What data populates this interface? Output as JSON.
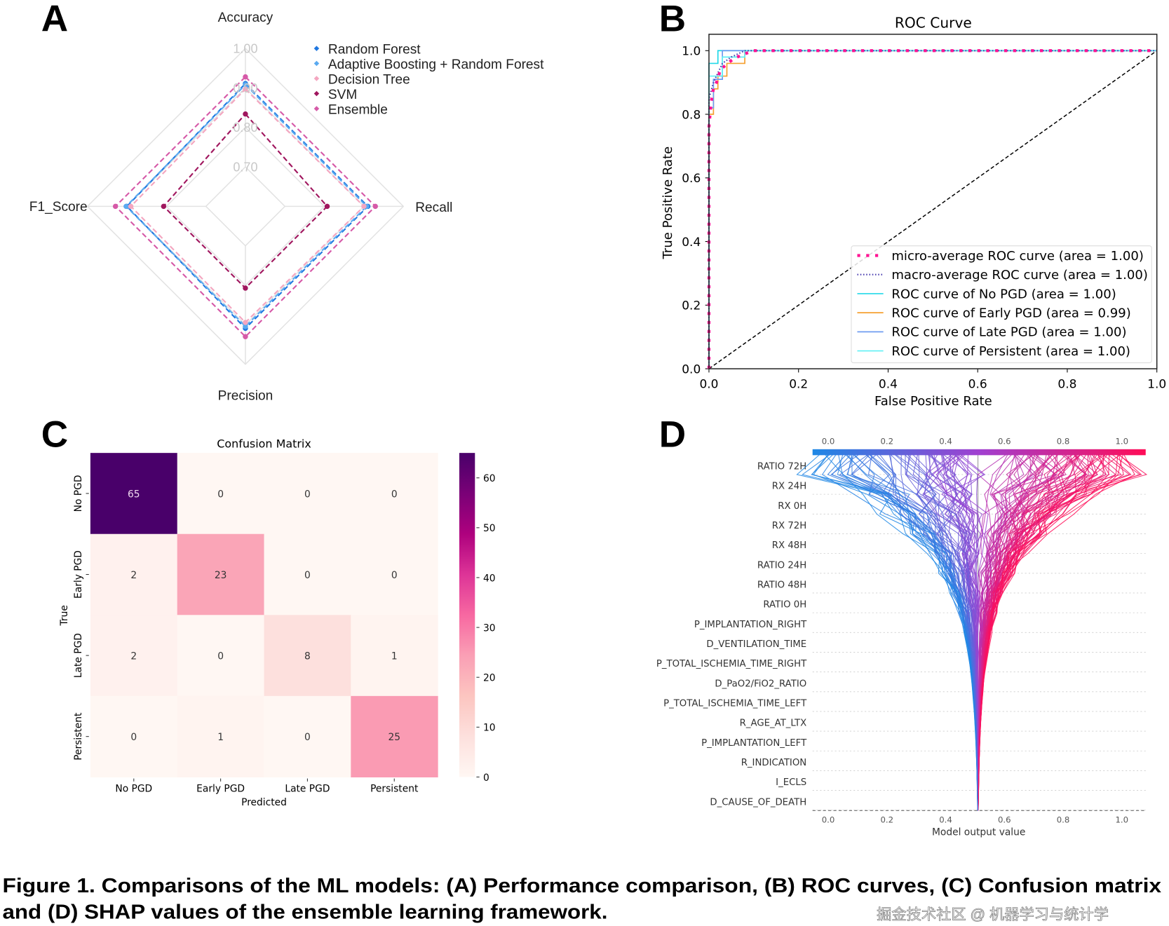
{
  "panel_labels": [
    "A",
    "B",
    "C",
    "D"
  ],
  "caption": {
    "line1": "Figure 1. Comparisons of the ML models: (A) Performance comparison, (B) ROC curves, (C) Confusion matrix",
    "line2": "and (D) SHAP values of the ensemble learning framework."
  },
  "watermark": "掘金技术社区 @ 机器学习与统计学",
  "chart_data": [
    {
      "type": "radar",
      "axes": [
        "Accuracy",
        "Recall",
        "Precision",
        "F1_Score"
      ],
      "range": [
        0.6,
        1.0
      ],
      "tick_labels": [
        "0.70",
        "0.80",
        "0.90",
        "1.00"
      ],
      "ticks": [
        0.7,
        0.8,
        0.9,
        1.0
      ],
      "legend_position": "top-right",
      "series": [
        {
          "name": "Random Forest",
          "color": "#1f77e0",
          "values": [
            0.911,
            0.91,
            0.909,
            0.9
          ]
        },
        {
          "name": "Adaptive Boosting + Random Forest",
          "color": "#5aaaf0",
          "values": [
            0.908,
            0.907,
            0.904,
            0.902
          ]
        },
        {
          "name": "Decision Tree",
          "color": "#f4a6c0",
          "values": [
            0.897,
            0.9,
            0.894,
            0.89
          ]
        },
        {
          "name": "SVM",
          "color": "#a0165e",
          "values": [
            0.834,
            0.807,
            0.807,
            0.807
          ]
        },
        {
          "name": "Ensemble",
          "color": "#d65aa8",
          "values": [
            0.928,
            0.929,
            0.93,
            0.929
          ]
        }
      ]
    },
    {
      "type": "line",
      "title": "ROC Curve",
      "xlabel": "False Positive Rate",
      "ylabel": "True Positive Rate",
      "xlim": [
        0.0,
        1.0
      ],
      "ylim": [
        0.0,
        1.05
      ],
      "xticks": [
        "0.0",
        "0.2",
        "0.4",
        "0.6",
        "0.8",
        "1.0"
      ],
      "yticks": [
        "0.0",
        "0.2",
        "0.4",
        "0.6",
        "0.8",
        "1.0"
      ],
      "legend_position": "lower-right",
      "series": [
        {
          "name": "micro-average ROC curve (area = 1.00)",
          "color": "#ff1493",
          "style": "dotted-thick",
          "x": [
            0,
            0,
            0.005,
            0.01,
            0.02,
            0.025,
            0.055,
            0.08,
            0.1,
            1
          ],
          "y": [
            0,
            0.76,
            0.84,
            0.88,
            0.91,
            0.94,
            0.975,
            0.99,
            1,
            1
          ]
        },
        {
          "name": "macro-average ROC curve (area = 1.00)",
          "color": "#4b3fb0",
          "style": "dotted",
          "x": [
            0,
            0,
            0.01,
            0.03,
            0.05,
            0.08,
            1
          ],
          "y": [
            0,
            0.85,
            0.9,
            0.96,
            0.98,
            1,
            1
          ]
        },
        {
          "name": "ROC curve of No PGD (area = 1.00)",
          "color": "#22d8e8",
          "style": "solid",
          "x": [
            0,
            0,
            0.02,
            0.02,
            1
          ],
          "y": [
            0,
            0.96,
            0.96,
            1,
            1
          ]
        },
        {
          "name": "ROC curve of Early PGD (area = 0.99)",
          "color": "#f5a030",
          "style": "solid",
          "x": [
            0,
            0,
            0.01,
            0.01,
            0.02,
            0.02,
            0.04,
            0.04,
            0.08,
            0.08,
            1
          ],
          "y": [
            0,
            0.8,
            0.8,
            0.88,
            0.88,
            0.92,
            0.92,
            0.96,
            0.96,
            1,
            1
          ]
        },
        {
          "name": "ROC curve of Late PGD (area = 1.00)",
          "color": "#6f9cf0",
          "style": "solid",
          "x": [
            0,
            0,
            0.01,
            0.01,
            0.03,
            0.03,
            1
          ],
          "y": [
            0,
            0.82,
            0.82,
            0.91,
            0.91,
            1,
            1
          ]
        },
        {
          "name": "ROC curve of Persistent (area = 1.00)",
          "color": "#5ff0f5",
          "style": "solid",
          "x": [
            0,
            0,
            0.03,
            0.03,
            0.08,
            0.08,
            1
          ],
          "y": [
            0,
            0.92,
            0.92,
            0.98,
            0.98,
            1,
            1
          ]
        }
      ],
      "reference_line": {
        "x": [
          0,
          1
        ],
        "y": [
          0,
          1
        ],
        "color": "#000000",
        "style": "dashed"
      }
    },
    {
      "type": "heatmap",
      "title": "Confusion Matrix",
      "xlabel": "Predicted",
      "ylabel": "True",
      "categories": [
        "No PGD",
        "Early PGD",
        "Late PGD",
        "Persistent"
      ],
      "values": [
        [
          65,
          0,
          0,
          0
        ],
        [
          2,
          23,
          0,
          0
        ],
        [
          2,
          0,
          8,
          1
        ],
        [
          0,
          1,
          0,
          25
        ]
      ],
      "colorbar": {
        "range": [
          0,
          65
        ],
        "ticks": [
          "0",
          "10",
          "20",
          "30",
          "40",
          "50",
          "60"
        ],
        "colormap": "RdPu"
      }
    },
    {
      "type": "line",
      "subtype": "shap-decision-plot",
      "xlabel": "Model output value",
      "xticks": [
        "0.0",
        "0.2",
        "0.4",
        "0.6",
        "0.8",
        "1.0"
      ],
      "base_value": 0.51,
      "features": [
        "RATIO 72H",
        "RX 24H",
        "RX 0H",
        "RX 72H",
        "RX 48H",
        "RATIO 24H",
        "RATIO 48H",
        "RATIO 0H",
        "P_IMPLANTATION_RIGHT",
        "D_VENTILATION_TIME",
        "P_TOTAL_ISCHEMIA_TIME_RIGHT",
        "D_PaO2/FiO2_RATIO",
        "P_TOTAL_ISCHEMIA_TIME_LEFT",
        "R_AGE_AT_LTX",
        "P_IMPLANTATION_LEFT",
        "R_INDICATION",
        "I_ECLS",
        "D_CAUSE_OF_DEATH"
      ],
      "colors": {
        "low": "#1e88e5",
        "mid": "#a040d0",
        "high": "#ff0d57"
      }
    }
  ]
}
